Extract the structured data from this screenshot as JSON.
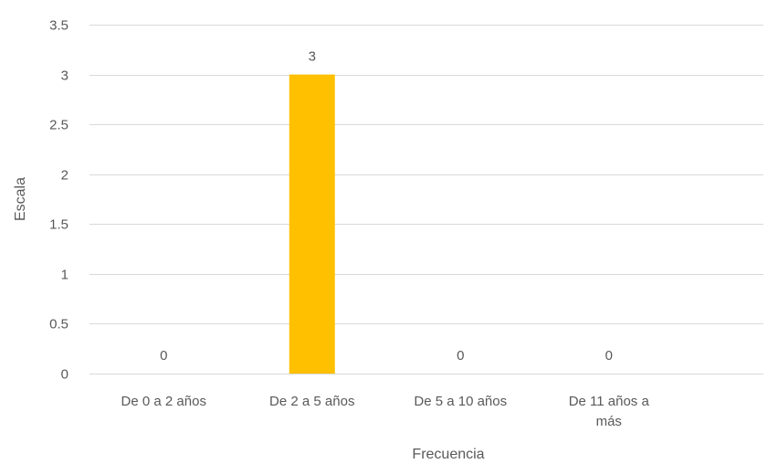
{
  "chart_data": {
    "type": "bar",
    "categories": [
      "De 0 a 2 años",
      "De 2 a 5 años",
      "De 5 a 10 años",
      "De 11 años a más"
    ],
    "values": [
      0,
      3,
      0,
      0
    ],
    "data_labels": [
      "0",
      "3",
      "0",
      "0"
    ],
    "title": "",
    "xlabel": "Frecuencia",
    "ylabel": "Escala",
    "ylim": [
      0,
      3.5
    ],
    "yticks": [
      "0",
      "0.5",
      "1",
      "1.5",
      "2",
      "2.5",
      "3",
      "3.5"
    ],
    "grid": true,
    "legend": "none",
    "bar_color": "#FFC000",
    "gridline_color": "#D9D9D9",
    "text_color": "#595959"
  }
}
